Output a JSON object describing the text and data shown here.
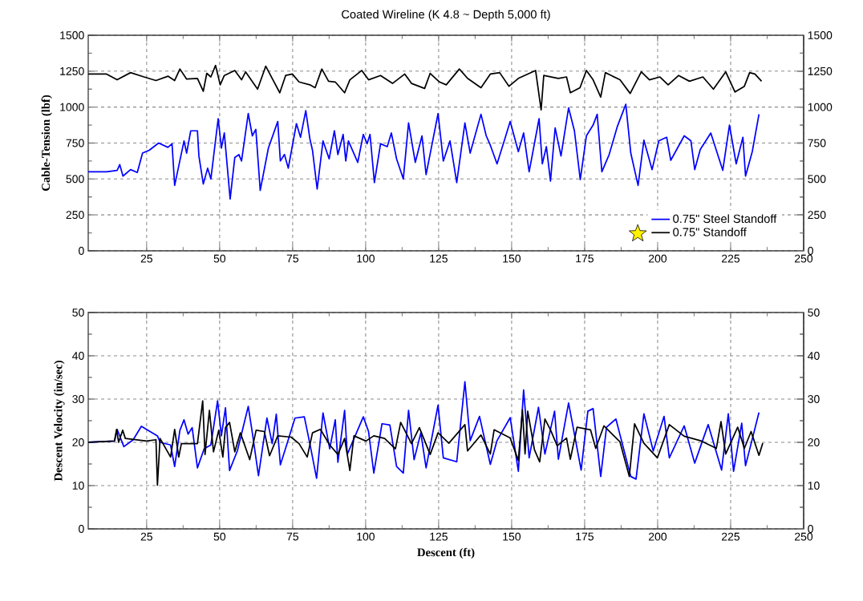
{
  "chart_data": [
    {
      "type": "line",
      "title": "Coated Wireline (K 4.8 ~ Depth 5,000 ft)",
      "ylabel": "Cable-Tension (lbf)",
      "xlim": [
        5,
        250
      ],
      "xticks": [
        25,
        50,
        75,
        100,
        125,
        150,
        175,
        200,
        225,
        250
      ],
      "ylim": [
        0,
        1500
      ],
      "yticks": [
        0,
        250,
        500,
        750,
        1000,
        1250,
        1500
      ],
      "y2lim": [
        0,
        1500
      ],
      "y2ticks": [
        0,
        250,
        500,
        750,
        1000,
        1250,
        1500
      ],
      "grid": true,
      "legend": "bottom right",
      "series": [
        {
          "name": "0.75\" Steel Standoff",
          "color": "#0000ff",
          "x": [
            5,
            11.3,
            14.9,
            15.8,
            16.9,
            19.5,
            21.8,
            23.6,
            25.9,
            29.1,
            32.3,
            33.7,
            34.6,
            37.8,
            38.7,
            40.1,
            42.4,
            42.9,
            44.4,
            45.9,
            47,
            49.5,
            50.6,
            51.6,
            53.6,
            55.2,
            56.6,
            57.5,
            59.8,
            61.2,
            62.4,
            63.9,
            66.7,
            69.9,
            70.8,
            72.2,
            73.5,
            76.3,
            77.7,
            79.5,
            80.9,
            81.8,
            83.4,
            85.4,
            87.5,
            89.3,
            90.5,
            92.3,
            93.2,
            94.1,
            97.3,
            99.2,
            100.5,
            101.5,
            103,
            105.1,
            107.4,
            108.8,
            110.6,
            112.9,
            114.7,
            117,
            119.3,
            120.7,
            124.8,
            126.6,
            128.9,
            131.2,
            134,
            135.8,
            139.5,
            141.3,
            142.7,
            145,
            147.7,
            149.5,
            152.3,
            154.1,
            156,
            159.4,
            160.5,
            161.9,
            163.3,
            164.9,
            166.9,
            169.5,
            171.5,
            173.5,
            175.6,
            177.9,
            179.3,
            180.9,
            183.4,
            186.2,
            189.1,
            190.8,
            193.3,
            195.3,
            198.1,
            200.4,
            203.1,
            204.5,
            209.1,
            211.4,
            212.7,
            214.6,
            218.2,
            222.3,
            224.6,
            226.9,
            229.2,
            230.1,
            232.4,
            234.7
          ],
          "values": [
            550,
            550,
            560,
            600,
            520,
            565,
            545,
            680,
            700,
            750,
            720,
            745,
            455,
            765,
            680,
            835,
            835,
            660,
            465,
            575,
            500,
            920,
            715,
            820,
            360,
            650,
            670,
            625,
            955,
            800,
            845,
            420,
            715,
            900,
            625,
            670,
            575,
            885,
            790,
            975,
            780,
            700,
            430,
            765,
            640,
            835,
            670,
            810,
            625,
            765,
            615,
            810,
            745,
            810,
            475,
            745,
            725,
            820,
            640,
            500,
            890,
            615,
            800,
            530,
            955,
            625,
            765,
            475,
            890,
            680,
            950,
            800,
            735,
            605,
            780,
            900,
            690,
            820,
            550,
            920,
            605,
            725,
            485,
            855,
            660,
            995,
            835,
            495,
            800,
            875,
            950,
            550,
            670,
            865,
            1020,
            680,
            455,
            770,
            565,
            765,
            790,
            630,
            800,
            765,
            565,
            705,
            820,
            560,
            875,
            605,
            790,
            520,
            690,
            950
          ]
        },
        {
          "name": "0.75\" Standoff",
          "color": "#000000",
          "x": [
            5,
            11.3,
            14.9,
            19.5,
            24.1,
            28.2,
            32.3,
            34.6,
            36.4,
            38.7,
            42.4,
            44.4,
            45.6,
            47,
            48.6,
            50.2,
            51.6,
            55.2,
            57.5,
            58.9,
            63,
            65.8,
            68,
            70.6,
            72.6,
            74.9,
            77.2,
            80.9,
            82.7,
            85,
            87.3,
            89.6,
            92.8,
            94.6,
            98.7,
            101,
            105.1,
            109.2,
            113.4,
            115.7,
            120.2,
            122.1,
            125.3,
            127.6,
            132.1,
            134.9,
            139.5,
            142.7,
            145.9,
            149.1,
            152.3,
            158.2,
            160.1,
            161,
            166,
            168.8,
            170.1,
            173.4,
            175.6,
            177.9,
            180.5,
            182.1,
            187.1,
            190.6,
            194.4,
            197.2,
            200.8,
            203.6,
            207.2,
            210.9,
            215.5,
            219.1,
            223.3,
            226.5,
            229.7,
            231.5,
            233.3,
            235.6
          ],
          "values": [
            1230,
            1230,
            1190,
            1240,
            1210,
            1185,
            1215,
            1185,
            1265,
            1195,
            1200,
            1110,
            1235,
            1210,
            1290,
            1155,
            1220,
            1255,
            1190,
            1245,
            1125,
            1285,
            1200,
            1100,
            1220,
            1230,
            1175,
            1155,
            1135,
            1265,
            1180,
            1175,
            1100,
            1190,
            1255,
            1190,
            1220,
            1165,
            1230,
            1165,
            1130,
            1235,
            1175,
            1155,
            1265,
            1200,
            1135,
            1230,
            1240,
            1145,
            1200,
            1255,
            980,
            1220,
            1200,
            1210,
            1100,
            1135,
            1255,
            1190,
            1070,
            1240,
            1190,
            1095,
            1245,
            1190,
            1210,
            1155,
            1220,
            1180,
            1210,
            1125,
            1245,
            1105,
            1145,
            1240,
            1230,
            1180
          ]
        }
      ]
    },
    {
      "type": "line",
      "xlabel": "Descent (ft)",
      "ylabel": "Descent Velocity (in/sec)",
      "xlim": [
        5,
        250
      ],
      "xticks": [
        25,
        50,
        75,
        100,
        125,
        150,
        175,
        200,
        225,
        250
      ],
      "ylim": [
        0,
        50
      ],
      "yticks": [
        0,
        10,
        20,
        30,
        40,
        50
      ],
      "y2lim": [
        0,
        50
      ],
      "y2ticks": [
        0,
        10,
        20,
        30,
        40,
        50
      ],
      "grid": true,
      "series": [
        {
          "color": "#0000ff",
          "x": [
            5,
            14,
            14.9,
            17.2,
            20.4,
            23.2,
            28.7,
            29.6,
            33.2,
            34.6,
            36.4,
            37.8,
            39.2,
            40.6,
            42.4,
            44.7,
            47,
            49.3,
            50.6,
            52,
            53.4,
            56.1,
            59.8,
            61.2,
            63.3,
            66.2,
            68,
            69.4,
            70.8,
            73.1,
            75.8,
            79,
            80.9,
            83.2,
            85.4,
            87.7,
            89.6,
            90.5,
            92.8,
            93.7,
            99.2,
            101,
            102.8,
            105.6,
            108.3,
            110.6,
            112.9,
            114.7,
            116.6,
            118.9,
            120.7,
            124.8,
            126.6,
            131.2,
            134,
            135.8,
            139,
            142.7,
            145,
            149.5,
            152.3,
            154.1,
            156,
            159.2,
            161.4,
            164.7,
            166,
            169.5,
            173.8,
            176.1,
            177.9,
            180.5,
            182.5,
            185.7,
            190.8,
            192.6,
            195.3,
            198.5,
            202.2,
            204,
            209.1,
            212.7,
            217.3,
            221.9,
            224.2,
            226,
            228.8,
            230.1,
            234.7
          ],
          "values": [
            20,
            20.3,
            23,
            19,
            20.6,
            23.7,
            21.5,
            20,
            19.4,
            14.4,
            22.8,
            25.2,
            21.9,
            23.4,
            14.1,
            18.5,
            19.4,
            29.6,
            21.5,
            28,
            13.5,
            18.1,
            28.3,
            22.2,
            12.3,
            25.6,
            19.7,
            26.5,
            14.8,
            19.7,
            25.6,
            25.9,
            19.7,
            11.7,
            26.8,
            18.5,
            25.2,
            15.4,
            27.4,
            17.2,
            25.9,
            22.5,
            12.9,
            24.3,
            24,
            14.4,
            12.9,
            27.4,
            16,
            22.2,
            14.1,
            28.6,
            16.4,
            15.5,
            34,
            20.4,
            26,
            14.9,
            20.4,
            25.7,
            13.3,
            32.1,
            16.4,
            28.1,
            17.3,
            27.2,
            16.1,
            29.1,
            13.6,
            27.2,
            27.8,
            12.1,
            23.5,
            25.4,
            12.1,
            11.5,
            26.6,
            18,
            26,
            16.4,
            23.8,
            15.2,
            24.1,
            13.6,
            26.6,
            13.3,
            24.4,
            14.6,
            26.9
          ]
        },
        {
          "color": "#000000",
          "x": [
            5,
            14,
            14.7,
            15.4,
            16.8,
            17.7,
            25,
            28.2,
            28.7,
            29.6,
            33.2,
            34.6,
            36,
            36.9,
            42.4,
            44.2,
            45,
            46.5,
            47.9,
            49.7,
            51.1,
            52,
            53.4,
            55.2,
            57.1,
            60.3,
            62.5,
            65.3,
            67.1,
            69.9,
            74.5,
            77.2,
            80,
            81.8,
            84.5,
            87.7,
            90.5,
            92.8,
            94.6,
            96,
            100.1,
            102.8,
            106.5,
            110.2,
            112,
            115.7,
            118.4,
            122.1,
            124.8,
            128.5,
            134,
            134.9,
            139.5,
            142.7,
            144,
            149.5,
            152.3,
            153.7,
            154.6,
            155.5,
            157.8,
            159.6,
            161.4,
            163.3,
            165.6,
            168.8,
            170.1,
            172.4,
            177,
            178.8,
            181.6,
            187.1,
            190.3,
            192.1,
            195.3,
            199.9,
            204,
            209.1,
            214.6,
            220.1,
            221.7,
            223.3,
            227.4,
            229.7,
            232,
            234.7,
            236
          ],
          "values": [
            20,
            20.3,
            23,
            20,
            22.8,
            20.9,
            20.3,
            20.6,
            10.1,
            20.9,
            16.6,
            23,
            16.6,
            19.7,
            19.7,
            29.6,
            17.2,
            27.4,
            17.8,
            22.8,
            16.6,
            23.4,
            24.6,
            17.8,
            22.2,
            16,
            22.8,
            22.5,
            16.9,
            21.5,
            21.2,
            19.7,
            16.6,
            22.2,
            23,
            19.4,
            17.2,
            20.9,
            13.5,
            21.5,
            20.3,
            21.5,
            20.9,
            18.5,
            24.6,
            19.7,
            23.4,
            17.2,
            22.2,
            19.8,
            24.1,
            18,
            21.7,
            17.3,
            22.9,
            21,
            15.8,
            27.5,
            17.3,
            27.2,
            18.3,
            15.5,
            25.4,
            22.9,
            19.2,
            21,
            16.1,
            23.5,
            22.9,
            18.6,
            23.8,
            20.1,
            12.1,
            24.3,
            19.8,
            16.4,
            24.1,
            21.4,
            20.4,
            18.6,
            24.8,
            17.3,
            23.5,
            18.6,
            22.5,
            17,
            19.8
          ]
        }
      ]
    }
  ]
}
